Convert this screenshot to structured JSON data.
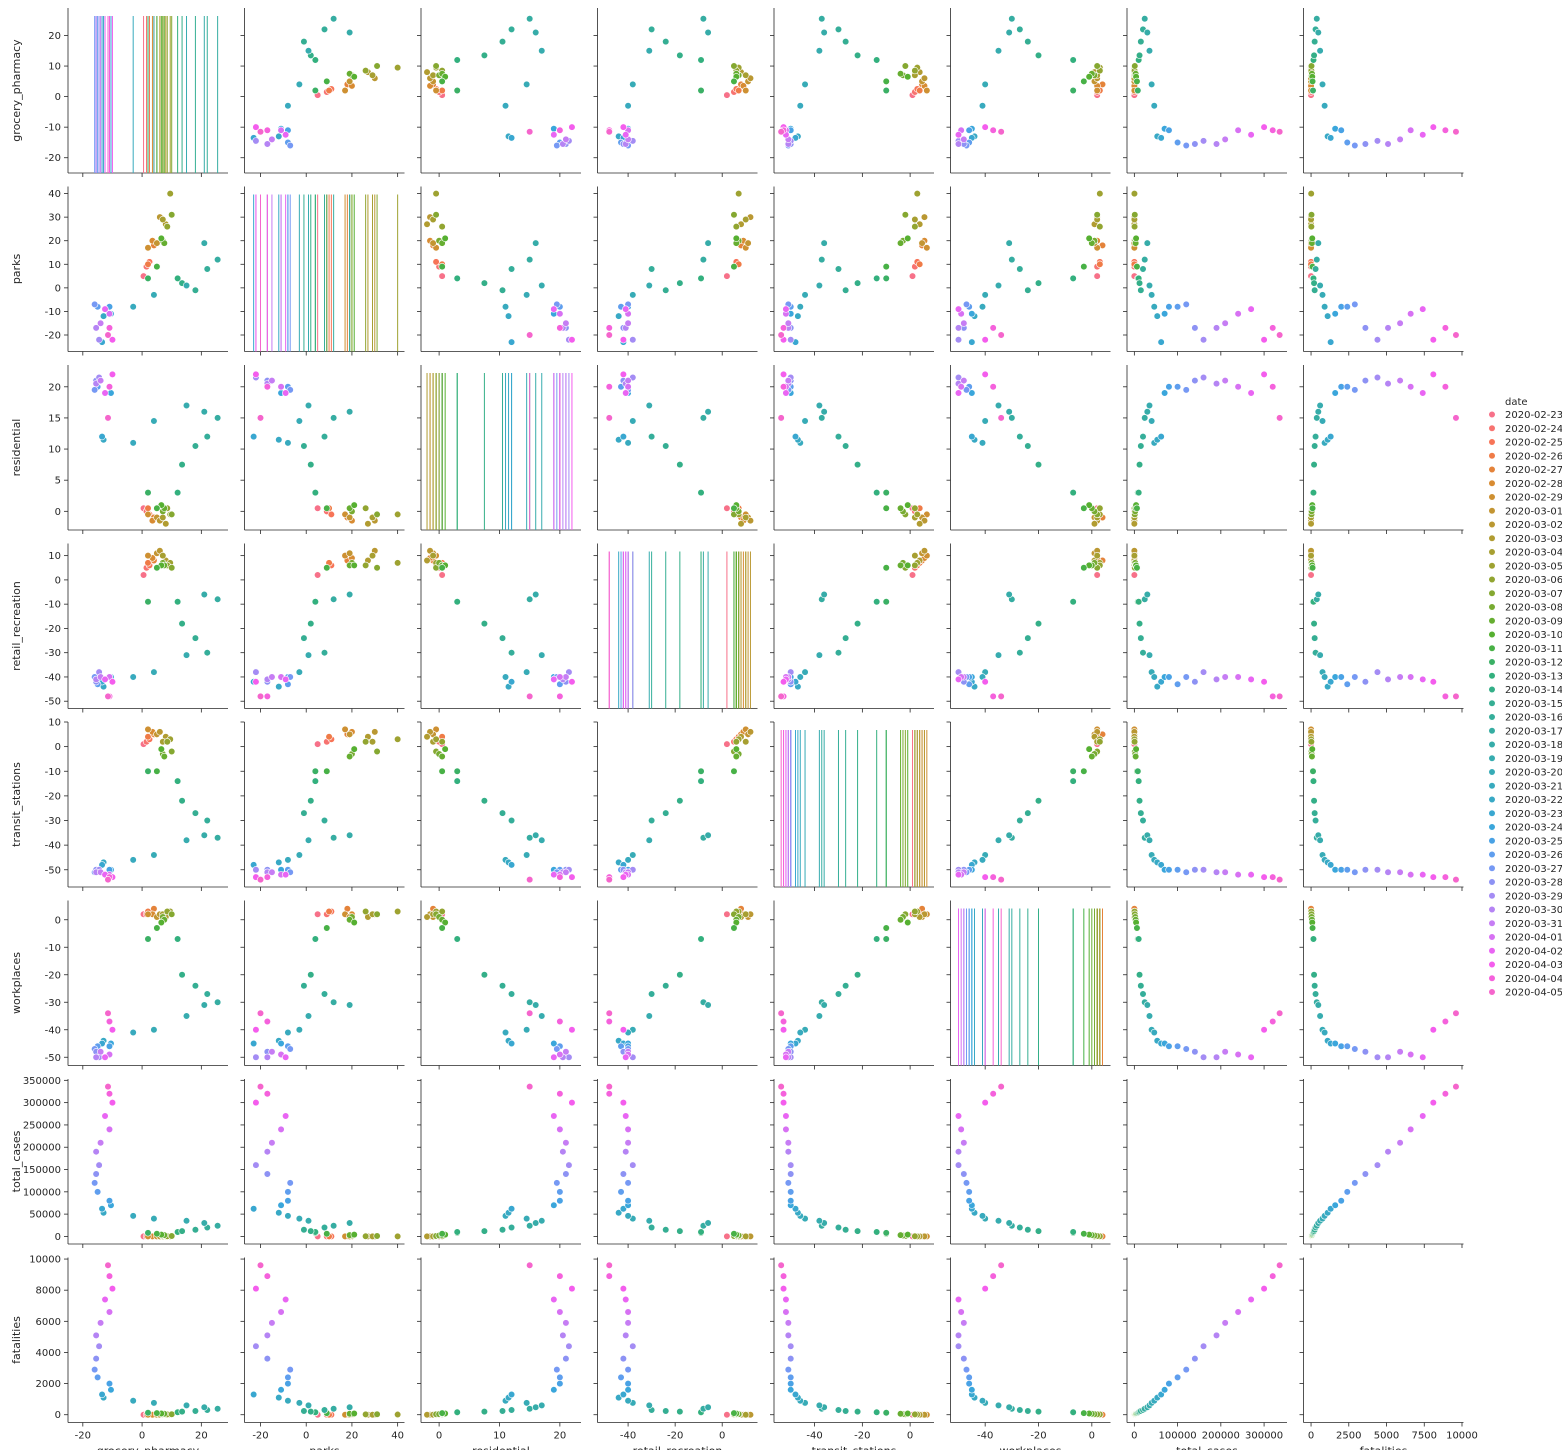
{
  "chart_data": {
    "type": "scatter",
    "subtype": "pairplot",
    "variables": [
      "grocery_pharmacy",
      "parks",
      "residential",
      "retail_recreation",
      "transit_stations",
      "workplaces",
      "total_cases",
      "fatalities"
    ],
    "hue": "date",
    "legend_title": "date",
    "legend_position": "right",
    "grid": false,
    "diagonal": "histogram",
    "dates": [
      "2020-02-23",
      "2020-02-24",
      "2020-02-25",
      "2020-02-26",
      "2020-02-27",
      "2020-02-28",
      "2020-02-29",
      "2020-03-01",
      "2020-03-02",
      "2020-03-03",
      "2020-03-04",
      "2020-03-05",
      "2020-03-06",
      "2020-03-07",
      "2020-03-08",
      "2020-03-09",
      "2020-03-10",
      "2020-03-11",
      "2020-03-12",
      "2020-03-13",
      "2020-03-14",
      "2020-03-15",
      "2020-03-16",
      "2020-03-17",
      "2020-03-18",
      "2020-03-19",
      "2020-03-20",
      "2020-03-21",
      "2020-03-22",
      "2020-03-23",
      "2020-03-24",
      "2020-03-25",
      "2020-03-26",
      "2020-03-27",
      "2020-03-28",
      "2020-03-29",
      "2020-03-30",
      "2020-03-31",
      "2020-04-01",
      "2020-04-02",
      "2020-04-03",
      "2020-04-04",
      "2020-04-05"
    ],
    "colors": [
      "#f77189",
      "#f7754f",
      "#dc8932",
      "#c39532",
      "#ae9d31",
      "#97a431",
      "#77ab31",
      "#50b131",
      "#33b07a",
      "#35ae93",
      "#36ada4",
      "#37abb4",
      "#38a9c5",
      "#3aa5df",
      "#6e9bf4",
      "#a48cf4",
      "#cc7af4",
      "#f45cf2",
      "#f565cc"
    ],
    "data": {
      "grocery_pharmacy": [
        0.5,
        1.5,
        2.5,
        2.0,
        4.0,
        3.5,
        2.0,
        5.0,
        6.0,
        8.0,
        7.0,
        9.5,
        8.5,
        10.0,
        7.0,
        7.5,
        6.5,
        5.0,
        2.0,
        12.0,
        13.5,
        18.0,
        22.0,
        25.5,
        21.0,
        15.0,
        4.0,
        -3.0,
        -13.0,
        -13.5,
        -10.5,
        -11.0,
        -15.0,
        -16.0,
        -15.5,
        -14.5,
        -15.5,
        -14.0,
        -11.0,
        -12.5,
        -10.0,
        -11.0,
        -11.5
      ],
      "parks": [
        5,
        9,
        11,
        10,
        18,
        20,
        17,
        19,
        30,
        27,
        29,
        40,
        26,
        31,
        20,
        19,
        21,
        9,
        4,
        4,
        2,
        -1,
        8,
        12,
        19,
        1,
        -3,
        -8,
        -12,
        -23,
        -11,
        -8,
        -8,
        -7,
        -17,
        -22,
        -17,
        -15,
        -11,
        -9,
        -22,
        -17,
        -20
      ],
      "residential": [
        0.5,
        0.0,
        -0.5,
        0.5,
        -1.0,
        -1.5,
        -0.5,
        -1.0,
        -1.5,
        -2.0,
        -1.0,
        -0.5,
        0.5,
        -0.5,
        0.0,
        0.5,
        1.0,
        0.5,
        3.0,
        3.0,
        7.5,
        10.5,
        12.0,
        15.0,
        16.0,
        17.0,
        14.5,
        11.0,
        11.5,
        12.0,
        19.0,
        20.0,
        20.0,
        19.5,
        21.0,
        21.5,
        20.5,
        21.0,
        20.0,
        19.0,
        22.0,
        20.0,
        15.0
      ],
      "retail_recreation": [
        2,
        5,
        6,
        7,
        8,
        9,
        10,
        11,
        12,
        8,
        10,
        7,
        6,
        5,
        7,
        6,
        6,
        5,
        -9,
        -9,
        -18,
        -24,
        -30,
        -8,
        -6,
        -31,
        -38,
        -40,
        -44,
        -42,
        -40,
        -40,
        -43,
        -40,
        -42,
        -38,
        -41,
        -40,
        -40,
        -41,
        -42,
        -48,
        -48
      ],
      "transit_stations": [
        1,
        2,
        3,
        4,
        5,
        6,
        7,
        5,
        6,
        4,
        2,
        3,
        2,
        -2,
        -3,
        -4,
        -1,
        -10,
        -10,
        -14,
        -22,
        -27,
        -30,
        -37,
        -36,
        -38,
        -44,
        -46,
        -47,
        -48,
        -50,
        -50,
        -50,
        -51,
        -50,
        -50,
        -51,
        -51,
        -52,
        -52,
        -53,
        -53,
        -54
      ],
      "workplaces": [
        2,
        2,
        3,
        3,
        4,
        2,
        2,
        1,
        2,
        1,
        2,
        3,
        3,
        2,
        1,
        0,
        -1,
        -3,
        -7,
        -7,
        -20,
        -24,
        -27,
        -30,
        -31,
        -35,
        -40,
        -41,
        -44,
        -45,
        -45,
        -46,
        -46,
        -47,
        -48,
        -50,
        -50,
        -48,
        -49,
        -50,
        -40,
        -37,
        -34
      ],
      "total_cases": [
        0,
        0,
        0,
        0,
        0,
        0,
        0,
        0,
        0,
        0,
        100,
        200,
        500,
        1000,
        2000,
        3000,
        4000,
        6000,
        8000,
        10000,
        12000,
        15000,
        20000,
        24000,
        30000,
        35000,
        40000,
        46000,
        53000,
        62000,
        70000,
        80000,
        100000,
        120000,
        140000,
        160000,
        190000,
        210000,
        240000,
        270000,
        300000,
        320000,
        336000
      ],
      "fatalities": [
        0,
        0,
        0,
        0,
        0,
        0,
        0,
        0,
        0,
        0,
        0,
        10,
        20,
        30,
        40,
        60,
        80,
        100,
        130,
        160,
        200,
        240,
        300,
        380,
        480,
        600,
        760,
        900,
        1100,
        1300,
        1600,
        2000,
        2400,
        2900,
        3600,
        4400,
        5100,
        5900,
        6600,
        7400,
        8100,
        8900,
        9600
      ]
    },
    "axis_ranges": {
      "grocery_pharmacy": [
        -25,
        29
      ],
      "parks": [
        -27,
        43
      ],
      "residential": [
        -3,
        23.5
      ],
      "retail_recreation": [
        -53,
        15
      ],
      "transit_stations": [
        -57,
        10
      ],
      "workplaces": [
        -53,
        7
      ],
      "total_cases": [
        -17000,
        353000
      ],
      "fatalities": [
        -500,
        10100
      ]
    },
    "ticks": {
      "grocery_pharmacy": [
        -20,
        0,
        20
      ],
      "parks": [
        -20,
        0,
        20,
        40
      ],
      "residential": [
        0,
        10,
        20
      ],
      "retail_recreation": [
        -40,
        -20,
        0
      ],
      "transit_stations": [
        -40,
        -20,
        0
      ],
      "workplaces": [
        -40,
        -20,
        0
      ],
      "total_cases": [
        0,
        100000,
        200000,
        300000
      ],
      "fatalities": [
        0,
        2500,
        5000,
        7500,
        10000
      ]
    },
    "y_ticks": {
      "grocery_pharmacy": [
        -20,
        -10,
        0,
        10,
        20
      ],
      "parks": [
        -20,
        -10,
        0,
        10,
        20,
        30,
        40
      ],
      "residential": [
        0,
        5,
        10,
        15,
        20
      ],
      "retail_recreation": [
        -50,
        -40,
        -30,
        -20,
        -10,
        0,
        10
      ],
      "transit_stations": [
        -50,
        -40,
        -30,
        -20,
        -10,
        0,
        10
      ],
      "workplaces": [
        -50,
        -40,
        -30,
        -20,
        -10,
        0
      ],
      "total_cases": [
        0,
        50000,
        100000,
        150000,
        200000,
        250000,
        300000,
        350000
      ],
      "fatalities": [
        0,
        2000,
        4000,
        6000,
        8000,
        10000
      ]
    }
  }
}
